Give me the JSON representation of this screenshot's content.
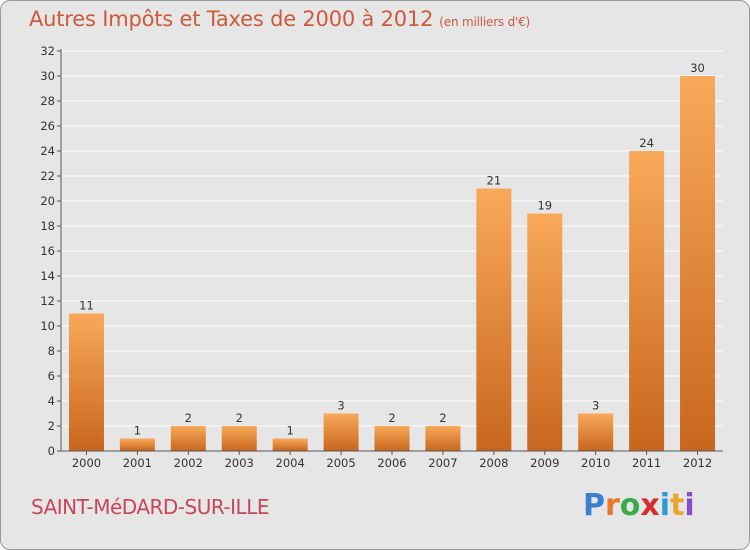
{
  "header": {
    "title": "Autres Impôts et Taxes de 2000 à 2012",
    "subtitle": "(en milliers d'€)"
  },
  "footer": {
    "commune": "SAINT-MéDARD-SUR-ILLE",
    "logo_letters": [
      "P",
      "r",
      "o",
      "x",
      "i",
      "t",
      "i"
    ],
    "logo_colors": [
      "#3b7fd0",
      "#e8772a",
      "#3bab4a",
      "#d42e2e",
      "#2e9bd4",
      "#e8a52a",
      "#8a4cc4"
    ]
  },
  "colors": {
    "bar_top": "#f9a95a",
    "bar_bottom": "#c8661e",
    "grid": "#ffffff",
    "axis": "#555555"
  },
  "chart_data": {
    "type": "bar",
    "categories": [
      "2000",
      "2001",
      "2002",
      "2003",
      "2004",
      "2005",
      "2006",
      "2007",
      "2008",
      "2009",
      "2010",
      "2011",
      "2012"
    ],
    "values": [
      11,
      1,
      2,
      2,
      1,
      3,
      2,
      2,
      21,
      19,
      3,
      24,
      30
    ],
    "ylim": [
      0,
      32
    ],
    "yticks": [
      0,
      2,
      4,
      6,
      8,
      10,
      12,
      14,
      16,
      18,
      20,
      22,
      24,
      26,
      28,
      30,
      32
    ],
    "grid": true
  }
}
